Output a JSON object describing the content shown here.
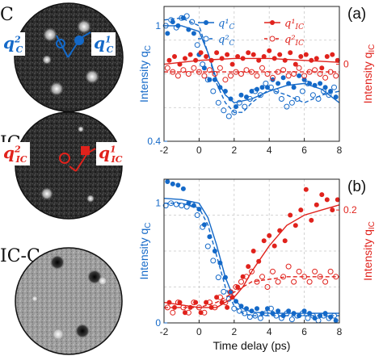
{
  "images": {
    "c_label": "C",
    "ic_label": "IC",
    "icc_label": "IC-C",
    "qc2": "q",
    "qc2_sup": "2",
    "qc2_sub": "C",
    "qc1": "q",
    "qc1_sup": "1",
    "qc1_sub": "C",
    "qic2": "q",
    "qic2_sup": "2",
    "qic2_sub": "IC",
    "qic1": "q",
    "qic1_sup": "1",
    "qic1_sub": "IC"
  },
  "colors": {
    "blue": "#1469c8",
    "red": "#e0221c",
    "grid": "#c8c8c8"
  },
  "chart_data": [
    {
      "type": "scatter",
      "panel_label": "(a)",
      "xlabel": "",
      "ylabel_left": "Intensity q",
      "ylabel_left_sub": "C",
      "ylabel_right": "Intensity q",
      "ylabel_right_sub": "IC",
      "xlim": [
        -2,
        8
      ],
      "xticks": [
        "-2",
        "0",
        "2",
        "4",
        "6",
        "8"
      ],
      "ylim_left": [
        0.4,
        1.1
      ],
      "yticks_left": [
        "0.4",
        "1"
      ],
      "ylim_right": [
        -0.4,
        0.3
      ],
      "yticks_right": [
        "0"
      ],
      "grid": true,
      "legend": [
        "q¹C",
        "q²C",
        "q¹IC",
        "q²IC"
      ],
      "series": [
        {
          "name": "q¹C",
          "axis": "left",
          "style": "filled",
          "color": "blue",
          "x": [
            -1.8,
            -1.5,
            -1.2,
            -0.9,
            -0.6,
            -0.3,
            0,
            0.3,
            0.6,
            0.9,
            1.2,
            1.5,
            1.8,
            2.1,
            2.4,
            2.7,
            3,
            3.3,
            3.6,
            3.9,
            4.2,
            4.5,
            4.8,
            5.1,
            5.4,
            5.7,
            6,
            6.3,
            6.6,
            6.9,
            7.2,
            7.5,
            7.8
          ],
          "y": [
            0.96,
            1.02,
            1.0,
            1.04,
            0.98,
            0.96,
            0.85,
            0.78,
            0.72,
            0.72,
            0.68,
            0.66,
            0.62,
            0.58,
            0.64,
            0.63,
            0.66,
            0.67,
            0.68,
            0.68,
            0.72,
            0.7,
            0.73,
            0.7,
            0.68,
            0.74,
            0.72,
            0.7,
            0.69,
            0.7,
            0.68,
            0.66,
            0.63
          ]
        },
        {
          "name": "q²C",
          "axis": "left",
          "style": "open",
          "color": "blue",
          "x": [
            -1.9,
            -1.6,
            -1.3,
            -1.0,
            -0.7,
            -0.4,
            -0.1,
            0.2,
            0.5,
            0.8,
            1.1,
            1.4,
            1.7,
            2.0,
            2.3,
            2.6,
            2.9,
            3.2,
            3.5,
            3.8,
            4.1,
            4.4,
            4.7,
            5.0,
            5.3,
            5.6,
            5.9,
            6.2,
            6.5,
            6.8,
            7.1,
            7.4,
            7.7
          ],
          "y": [
            1.0,
            1.03,
            0.99,
            1.04,
            1.05,
            1.02,
            0.9,
            0.8,
            0.72,
            0.66,
            0.6,
            0.56,
            0.53,
            0.55,
            0.6,
            0.58,
            0.62,
            0.66,
            0.64,
            0.7,
            0.68,
            0.66,
            0.62,
            0.58,
            0.6,
            0.62,
            0.66,
            0.7,
            0.64,
            0.62,
            0.66,
            0.64,
            0.68
          ]
        },
        {
          "name": "q¹IC",
          "axis": "right",
          "style": "filled",
          "color": "red",
          "x": [
            -1.7,
            -1.4,
            -1.1,
            -0.8,
            -0.5,
            -0.2,
            0.1,
            0.4,
            0.7,
            1.0,
            1.3,
            1.6,
            1.9,
            2.2,
            2.5,
            2.8,
            3.1,
            3.4,
            3.7,
            4.0,
            4.3,
            4.6,
            4.9,
            5.2,
            5.5,
            5.8,
            6.1,
            6.4,
            6.7,
            7.0,
            7.3,
            7.6,
            7.9
          ],
          "y": [
            0.02,
            0.04,
            0.0,
            0.03,
            0.05,
            0.02,
            0.06,
            0.04,
            0.02,
            0.06,
            0.03,
            0.05,
            0.0,
            0.04,
            0.03,
            0.06,
            0.05,
            0.02,
            0.04,
            0.07,
            0.03,
            0.05,
            0.02,
            0.06,
            0.0,
            0.04,
            0.05,
            0.02,
            0.03,
            -0.02,
            0.04,
            0.05,
            0.02
          ]
        },
        {
          "name": "q²IC",
          "axis": "right",
          "style": "open",
          "color": "red",
          "x": [
            -1.8,
            -1.5,
            -1.2,
            -0.9,
            -0.6,
            -0.3,
            0.0,
            0.3,
            0.6,
            0.9,
            1.2,
            1.5,
            1.8,
            2.1,
            2.4,
            2.7,
            3.0,
            3.3,
            3.6,
            3.9,
            4.2,
            4.5,
            4.8,
            5.1,
            5.4,
            5.7,
            6.0,
            6.3,
            6.6,
            6.9,
            7.2,
            7.5,
            7.8
          ],
          "y": [
            -0.02,
            -0.04,
            -0.06,
            -0.03,
            -0.05,
            -0.02,
            -0.04,
            -0.06,
            -0.03,
            -0.05,
            -0.02,
            -0.08,
            -0.06,
            -0.04,
            -0.05,
            -0.03,
            -0.04,
            -0.06,
            -0.02,
            -0.05,
            -0.07,
            -0.04,
            -0.03,
            -0.06,
            -0.05,
            -0.02,
            -0.06,
            -0.04,
            -0.03,
            -0.05,
            -0.07,
            -0.04,
            -0.06
          ]
        }
      ],
      "fits": [
        {
          "axis": "left",
          "color": "blue",
          "dash": false,
          "x": [
            -2,
            -1,
            0,
            0.5,
            1,
            1.5,
            2,
            3,
            4,
            5,
            6,
            7,
            8
          ],
          "y": [
            1.0,
            1.0,
            0.97,
            0.86,
            0.72,
            0.64,
            0.6,
            0.62,
            0.66,
            0.69,
            0.7,
            0.67,
            0.6
          ]
        },
        {
          "axis": "left",
          "color": "blue",
          "dash": true,
          "x": [
            -2,
            -1,
            0,
            0.5,
            1,
            1.5,
            2,
            2.5,
            3,
            4,
            5,
            6,
            7,
            8
          ],
          "y": [
            1.03,
            1.04,
            1.0,
            0.86,
            0.7,
            0.6,
            0.55,
            0.55,
            0.6,
            0.67,
            0.64,
            0.6,
            0.64,
            0.66
          ]
        },
        {
          "axis": "right",
          "color": "red",
          "dash": false,
          "x": [
            -2,
            0,
            2,
            4,
            6,
            8
          ],
          "y": [
            0.0,
            0.02,
            0.03,
            0.03,
            0.02,
            0.01
          ]
        },
        {
          "axis": "right",
          "color": "red",
          "dash": true,
          "x": [
            -2,
            0,
            2,
            4,
            6,
            8
          ],
          "y": [
            -0.04,
            -0.04,
            -0.04,
            -0.04,
            -0.04,
            -0.04
          ]
        }
      ]
    },
    {
      "type": "scatter",
      "panel_label": "(b)",
      "xlabel": "Time delay (ps)",
      "ylabel_left": "Intensity q",
      "ylabel_left_sub": "C",
      "ylabel_right": "Intensity q",
      "ylabel_right_sub": "IC",
      "xlim": [
        -2,
        8
      ],
      "xticks": [
        "-2",
        "0",
        "2",
        "4",
        "6",
        "8"
      ],
      "ylim_left": [
        0,
        1.2
      ],
      "yticks_left": [
        "0",
        "1"
      ],
      "ylim_right": [
        -0.02,
        0.26
      ],
      "yticks_right": [
        "0.2"
      ],
      "grid": true,
      "series": [
        {
          "name": "q¹C",
          "axis": "left",
          "style": "filled",
          "color": "blue",
          "x": [
            -1.8,
            -1.5,
            -1.2,
            -0.9,
            -0.6,
            -0.3,
            0,
            0.3,
            0.6,
            0.9,
            1.2,
            1.5,
            1.8,
            2.1,
            2.4,
            2.7,
            3,
            3.3,
            3.6,
            3.9,
            4.2,
            4.5,
            4.8,
            5.1,
            5.4,
            5.7,
            6,
            6.3,
            6.6,
            6.9,
            7.2,
            7.5,
            7.8
          ],
          "y": [
            1.18,
            1.16,
            1.15,
            1.12,
            1.0,
            0.98,
            0.95,
            0.82,
            0.72,
            0.6,
            0.5,
            0.38,
            0.26,
            0.18,
            0.14,
            0.12,
            0.1,
            0.12,
            0.08,
            0.12,
            0.08,
            0.1,
            0.06,
            0.1,
            0.08,
            0.06,
            0.1,
            0.08,
            0.04,
            0.06,
            0.08,
            0.05,
            0.02
          ]
        },
        {
          "name": "q²C",
          "axis": "left",
          "style": "open",
          "color": "blue",
          "x": [
            -1.9,
            -1.6,
            -1.3,
            -1.0,
            -0.7,
            -0.4,
            -0.1,
            0.2,
            0.5,
            0.8,
            1.1,
            1.4,
            1.7,
            2.0,
            2.3,
            2.6,
            2.9,
            3.2,
            3.5,
            3.8,
            4.1,
            4.4,
            4.7,
            5.0,
            5.3,
            5.6,
            5.9,
            6.2,
            6.5,
            6.8,
            7.1,
            7.4,
            7.7
          ],
          "y": [
            0.98,
            1.0,
            0.99,
            0.98,
            0.97,
            0.99,
            0.9,
            0.8,
            0.64,
            0.52,
            0.38,
            0.26,
            0.2,
            0.12,
            0.1,
            0.08,
            0.05,
            0.06,
            0.04,
            0.08,
            0.12,
            0.06,
            0.04,
            0.08,
            0.03,
            0.06,
            0.08,
            0.04,
            0.06,
            0.02,
            0.06,
            0.04,
            0.06
          ]
        },
        {
          "name": "q¹IC",
          "axis": "right",
          "style": "filled",
          "color": "red",
          "x": [
            -1.7,
            -1.4,
            -1.1,
            -0.8,
            -0.5,
            -0.2,
            0.1,
            0.4,
            0.7,
            1.0,
            1.3,
            1.6,
            1.9,
            2.2,
            2.5,
            2.8,
            3.1,
            3.4,
            3.7,
            4.0,
            4.3,
            4.6,
            4.9,
            5.2,
            5.5,
            5.8,
            6.1,
            6.4,
            6.7,
            7.0,
            7.3,
            7.6,
            7.9
          ],
          "y": [
            0.02,
            0.01,
            0.02,
            0.0,
            0.01,
            0.02,
            0.0,
            0.02,
            0.01,
            0.03,
            0.02,
            0.01,
            0.03,
            0.05,
            0.07,
            0.09,
            0.12,
            0.1,
            0.14,
            0.15,
            0.13,
            0.16,
            0.14,
            0.19,
            0.17,
            0.2,
            0.24,
            0.18,
            0.21,
            0.23,
            0.22,
            0.2,
            0.22
          ]
        },
        {
          "name": "q²IC",
          "axis": "right",
          "style": "open",
          "color": "red",
          "x": [
            -1.8,
            -1.5,
            -1.2,
            -0.9,
            -0.6,
            -0.3,
            0.0,
            0.3,
            0.6,
            0.9,
            1.2,
            1.5,
            1.8,
            2.1,
            2.4,
            2.7,
            3.0,
            3.3,
            3.6,
            3.9,
            4.2,
            4.5,
            4.8,
            5.1,
            5.4,
            5.7,
            6.0,
            6.3,
            6.6,
            6.9,
            7.2,
            7.5,
            7.8
          ],
          "y": [
            0.01,
            0.0,
            0.02,
            0.01,
            0.0,
            0.02,
            0.01,
            0.0,
            0.02,
            0.01,
            0.03,
            0.02,
            0.04,
            0.05,
            0.06,
            0.07,
            0.08,
            0.06,
            0.07,
            0.05,
            0.08,
            0.06,
            0.07,
            0.09,
            0.06,
            0.08,
            0.07,
            0.06,
            0.08,
            0.07,
            0.06,
            0.08,
            0.07
          ]
        }
      ],
      "fits": [
        {
          "axis": "left",
          "color": "blue",
          "dash": false,
          "x": [
            -2,
            -1,
            0,
            0.5,
            1,
            1.5,
            2,
            2.5,
            3,
            4,
            5,
            6,
            7,
            8
          ],
          "y": [
            1.04,
            1.03,
            1.0,
            0.88,
            0.65,
            0.38,
            0.2,
            0.12,
            0.09,
            0.08,
            0.08,
            0.08,
            0.08,
            0.08
          ]
        },
        {
          "axis": "left",
          "color": "blue",
          "dash": true,
          "x": [
            -2,
            -1,
            0,
            0.5,
            1,
            1.5,
            2,
            2.5,
            3,
            4,
            5,
            6,
            7,
            8
          ],
          "y": [
            1.0,
            1.0,
            0.96,
            0.82,
            0.56,
            0.3,
            0.14,
            0.08,
            0.06,
            0.06,
            0.06,
            0.06,
            0.06,
            0.06
          ]
        },
        {
          "axis": "right",
          "color": "red",
          "dash": false,
          "x": [
            -2,
            -1,
            0,
            1,
            2,
            2.5,
            3,
            4,
            5,
            6,
            7,
            8
          ],
          "y": [
            0.02,
            0.015,
            0.01,
            0.01,
            0.03,
            0.05,
            0.08,
            0.13,
            0.17,
            0.19,
            0.2,
            0.21
          ]
        },
        {
          "axis": "right",
          "color": "red",
          "dash": true,
          "x": [
            -2,
            0,
            1,
            2,
            3,
            4,
            5,
            6,
            7,
            8
          ],
          "y": [
            0.01,
            0.01,
            0.02,
            0.04,
            0.06,
            0.065,
            0.07,
            0.07,
            0.07,
            0.07
          ]
        }
      ]
    }
  ]
}
